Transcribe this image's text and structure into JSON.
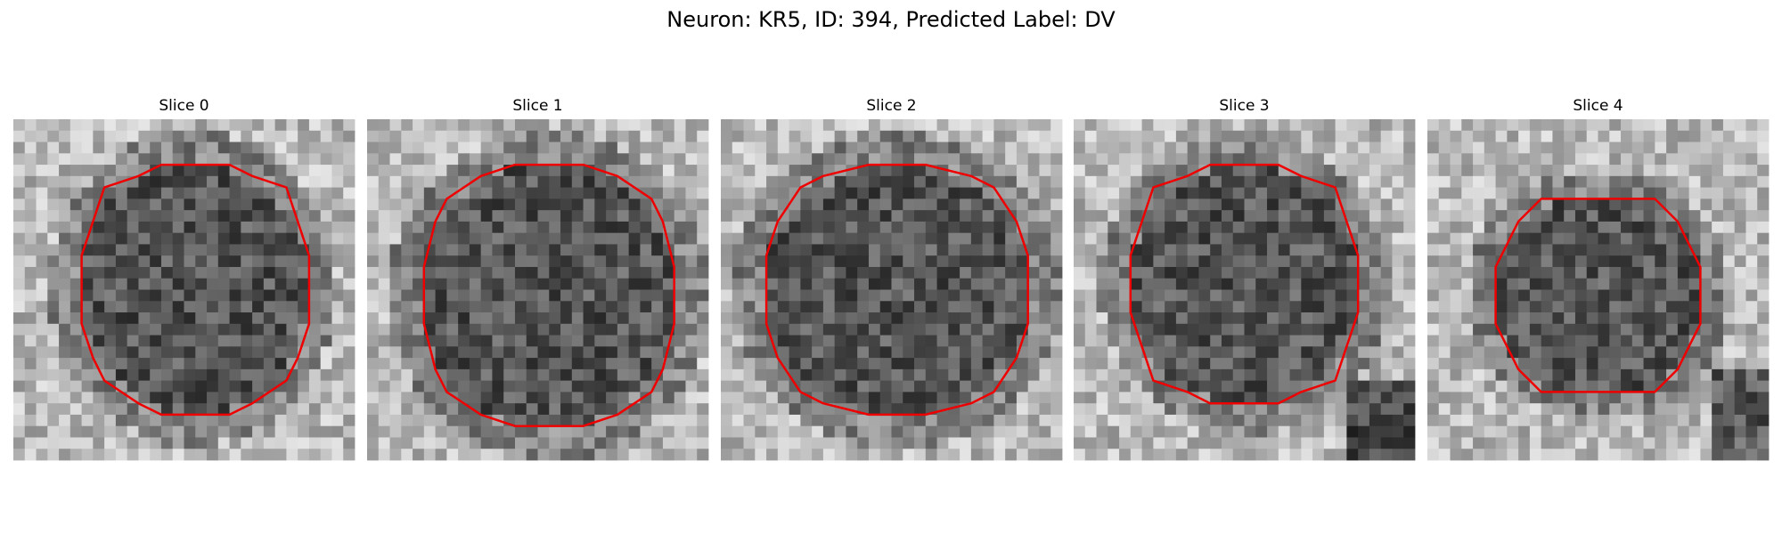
{
  "title": "Neuron: KR5, ID: 394, Predicted Label: DV",
  "panels": [
    {
      "title": "Slice 0"
    },
    {
      "title": "Slice 1"
    },
    {
      "title": "Slice 2"
    },
    {
      "title": "Slice 3"
    },
    {
      "title": "Slice 4"
    }
  ]
}
